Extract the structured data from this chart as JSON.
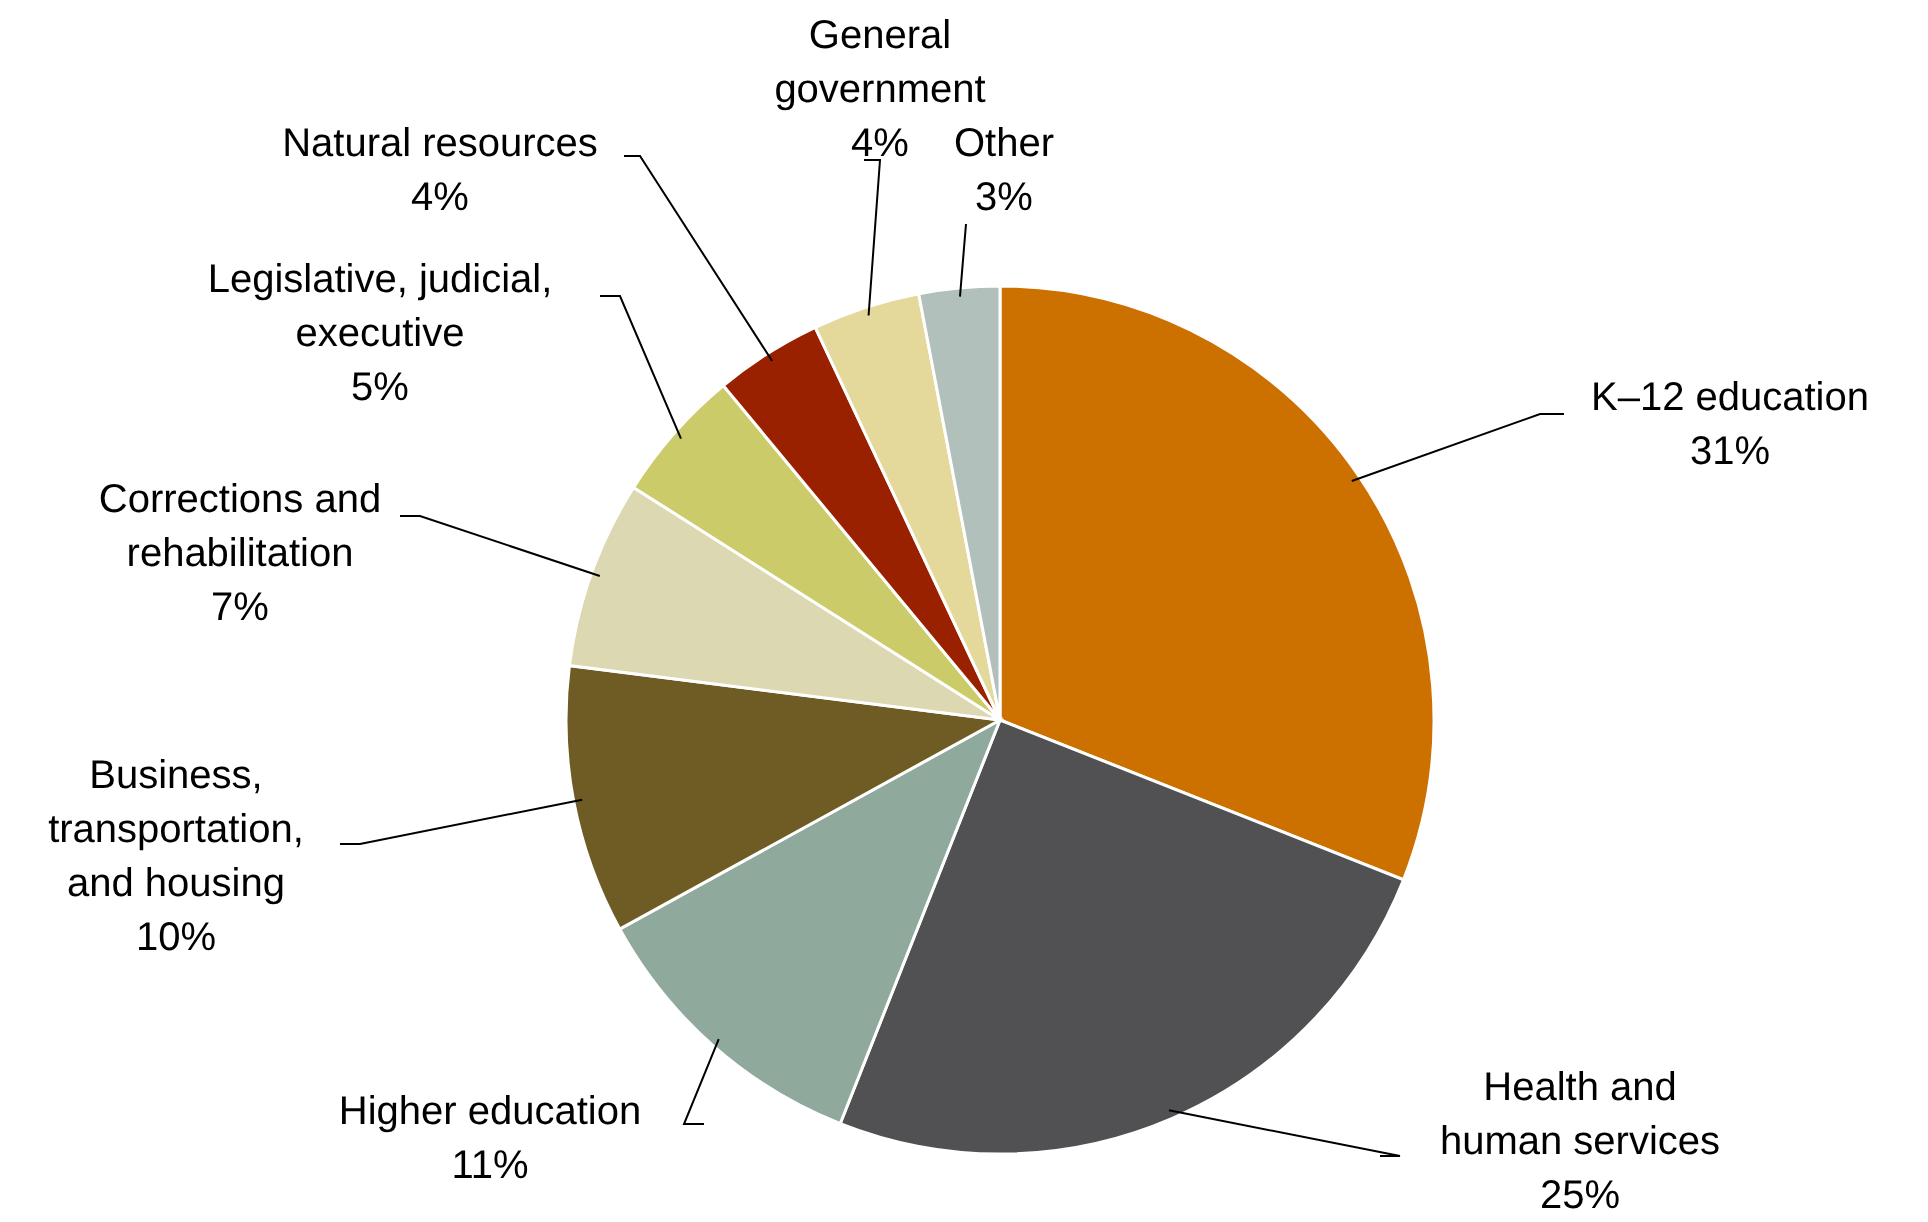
{
  "chart_data": {
    "type": "pie",
    "categories": [
      "K–12 education",
      "Health and human services",
      "Higher education",
      "Business, transportation, and housing",
      "Corrections and rehabilitation",
      "Legislative, judicial, executive",
      "Natural resources",
      "General government",
      "Other"
    ],
    "values": [
      31,
      25,
      11,
      10,
      7,
      5,
      4,
      4,
      3
    ],
    "colors": [
      "#cc7000",
      "#515053",
      "#8fa99c",
      "#6e5c24",
      "#dbd8b2",
      "#cccb6a",
      "#9a2100",
      "#e5d89b",
      "#b2c0bb"
    ],
    "value_labels": [
      "31%",
      "25%",
      "11%",
      "10%",
      "7%",
      "5%",
      "4%",
      "4%",
      "3%"
    ]
  }
}
